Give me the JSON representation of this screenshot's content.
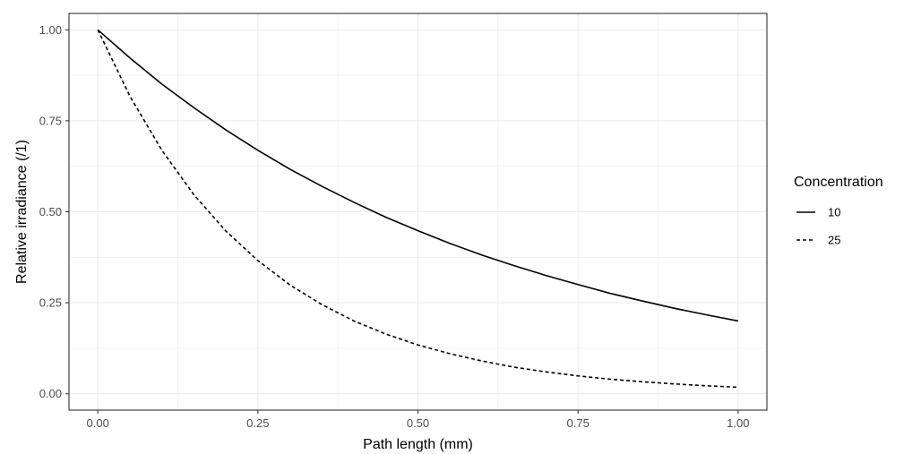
{
  "chart_data": {
    "type": "line",
    "title": "",
    "xlabel": "Path length (mm)",
    "ylabel": "Relative irradiance (/1)",
    "xlim": [
      0,
      1
    ],
    "ylim": [
      0,
      1
    ],
    "x_ticks": [
      0,
      0.25,
      0.5,
      0.75,
      1
    ],
    "x_tick_labels": [
      "0.00",
      "0.25",
      "0.50",
      "0.75",
      "1.00"
    ],
    "y_ticks": [
      0,
      0.25,
      0.5,
      0.75,
      1
    ],
    "y_tick_labels": [
      "0.00",
      "0.25",
      "0.50",
      "0.75",
      "1.00"
    ],
    "grid": true,
    "legend": {
      "title": "Concentration",
      "position": "right"
    },
    "x": [
      0,
      0.05,
      0.1,
      0.15,
      0.2,
      0.25,
      0.3,
      0.35,
      0.4,
      0.45,
      0.5,
      0.55,
      0.6,
      0.65,
      0.7,
      0.75,
      0.8,
      0.85,
      0.9,
      0.95,
      1
    ],
    "series": [
      {
        "name": "10",
        "linetype": "solid",
        "color": "#000000",
        "values": [
          1.0,
          0.923,
          0.851,
          0.786,
          0.725,
          0.669,
          0.617,
          0.57,
          0.526,
          0.485,
          0.448,
          0.413,
          0.381,
          0.352,
          0.325,
          0.3,
          0.276,
          0.255,
          0.235,
          0.217,
          0.2
        ]
      },
      {
        "name": "25",
        "linetype": "dashed",
        "color": "#000000",
        "values": [
          1.0,
          0.818,
          0.669,
          0.547,
          0.447,
          0.366,
          0.299,
          0.245,
          0.2,
          0.164,
          0.134,
          0.11,
          0.09,
          0.073,
          0.06,
          0.049,
          0.04,
          0.033,
          0.027,
          0.022,
          0.018
        ]
      }
    ]
  }
}
